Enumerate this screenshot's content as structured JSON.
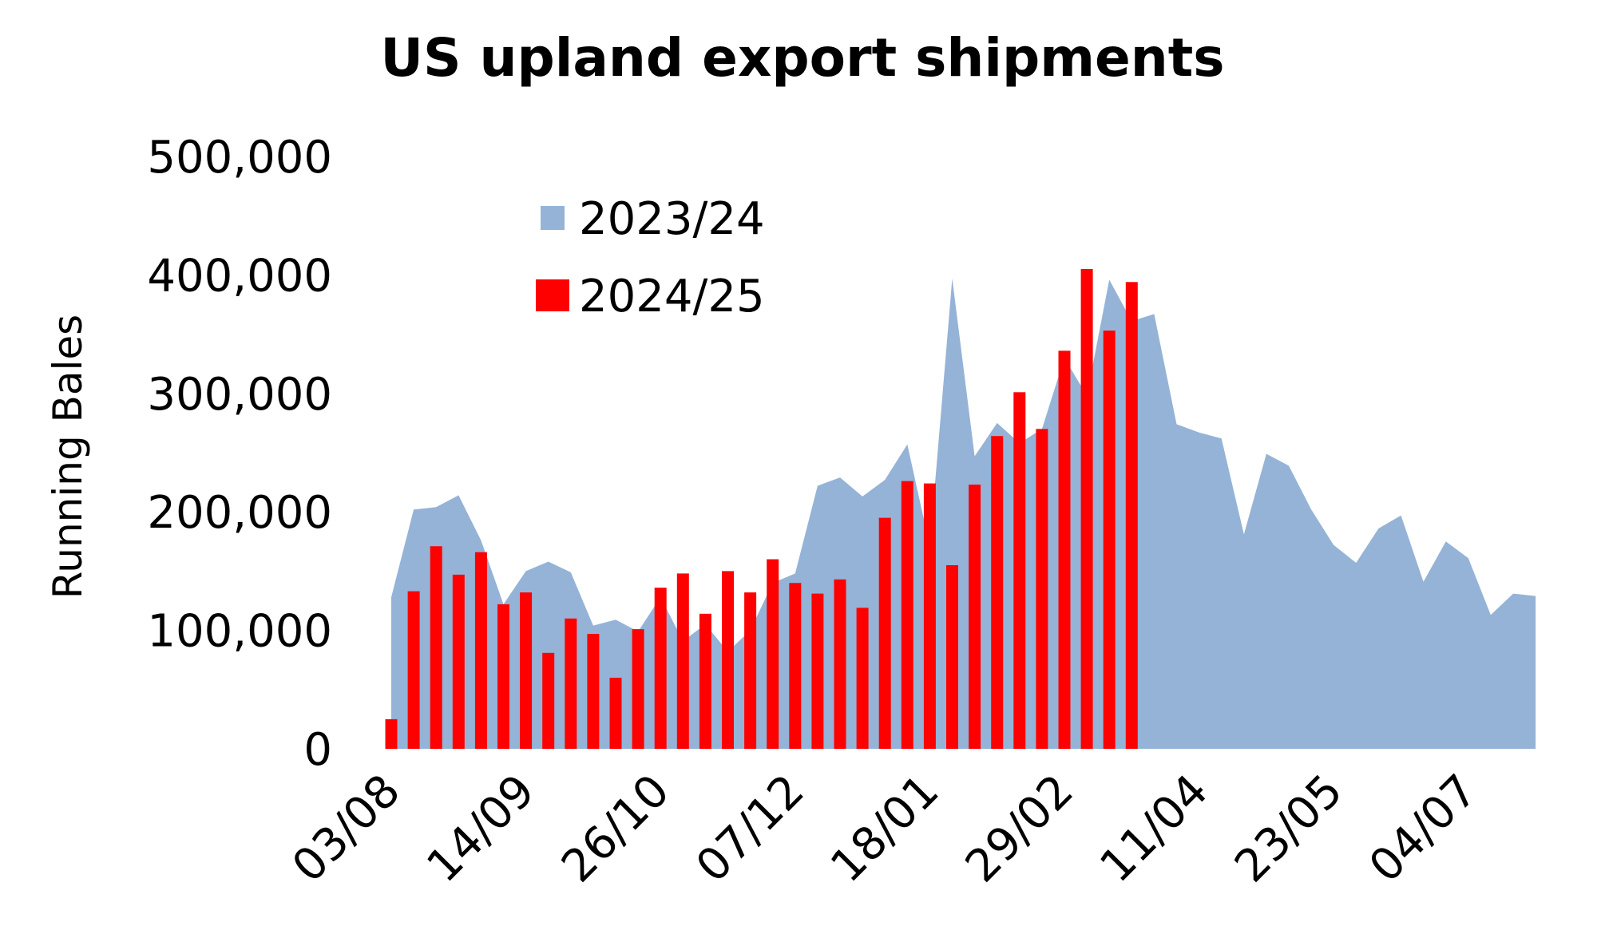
{
  "chart_data": {
    "type": "bar",
    "title": "US upland export shipments",
    "ylabel": "Running Bales",
    "xlabel": "",
    "ylim": [
      0,
      500000
    ],
    "yticks": [
      "0",
      "100,000",
      "200,000",
      "300,000",
      "400,000",
      "500,000"
    ],
    "ytick_values": [
      0,
      100000,
      200000,
      300000,
      400000,
      500000
    ],
    "xticks": [
      "03/08",
      "14/09",
      "26/10",
      "07/12",
      "18/01",
      "29/02",
      "11/04",
      "23/05",
      "04/07"
    ],
    "xtick_index": [
      0,
      6,
      12,
      18,
      24,
      30,
      36,
      42,
      48
    ],
    "legend_position": "top-left",
    "legend": [
      "2023/24",
      "2024/25"
    ],
    "series": [
      {
        "name": "2023/24",
        "kind": "area",
        "color": "#95b3d7",
        "values": [
          128000,
          202000,
          204000,
          214000,
          176000,
          122000,
          150000,
          158000,
          149000,
          104000,
          109000,
          99000,
          128000,
          91000,
          105000,
          82000,
          100000,
          140000,
          148000,
          222000,
          229000,
          213000,
          227000,
          257000,
          171000,
          397000,
          247000,
          275000,
          258000,
          270000,
          330000,
          298000,
          396000,
          361000,
          367000,
          274000,
          267000,
          262000,
          181000,
          249000,
          239000,
          202000,
          172000,
          157000,
          186000,
          197000,
          141000,
          175000,
          161000,
          113000,
          131000,
          129000
        ]
      },
      {
        "name": "2024/25",
        "kind": "bar",
        "color": "#ff0000",
        "values": [
          25000,
          133000,
          171000,
          147000,
          166000,
          122000,
          132000,
          81000,
          110000,
          97000,
          60000,
          101000,
          136000,
          148000,
          114000,
          150000,
          132000,
          160000,
          140000,
          131000,
          143000,
          119000,
          195000,
          226000,
          224000,
          155000,
          223000,
          264000,
          301000,
          270000,
          336000,
          405000,
          353000,
          394000
        ]
      }
    ]
  }
}
